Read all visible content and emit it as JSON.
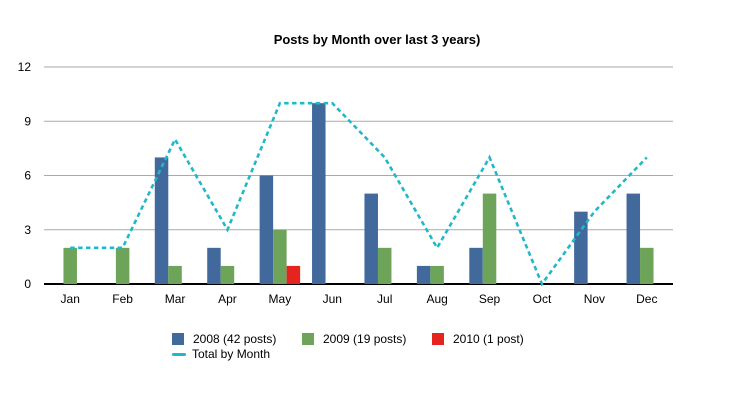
{
  "page": {
    "background": "#ffffff"
  },
  "chart_data": {
    "type": "bar",
    "title": "Posts by Month over last 3 years)",
    "categories": [
      "Jan",
      "Feb",
      "Mar",
      "Apr",
      "May",
      "Jun",
      "Jul",
      "Aug",
      "Sep",
      "Oct",
      "Nov",
      "Dec"
    ],
    "series": [
      {
        "name": "2008 (42 posts)",
        "kind": "bar",
        "color": "#41699c",
        "values": [
          0,
          0,
          7,
          2,
          6,
          10,
          5,
          1,
          2,
          0,
          4,
          5
        ]
      },
      {
        "name": "2009 (19 posts)",
        "kind": "bar",
        "color": "#6ea45a",
        "values": [
          2,
          2,
          1,
          1,
          3,
          0,
          2,
          1,
          5,
          0,
          0,
          2
        ]
      },
      {
        "name": "2010 (1 post)",
        "kind": "bar",
        "color": "#e52420",
        "values": [
          0,
          0,
          0,
          0,
          1,
          0,
          0,
          0,
          0,
          0,
          0,
          0
        ]
      },
      {
        "name": "Total by Month",
        "kind": "line",
        "dashed": true,
        "color": "#22b8c9",
        "values": [
          2,
          2,
          8,
          3,
          10,
          10,
          7,
          2,
          7,
          0,
          4,
          7
        ]
      }
    ],
    "xlabel": "",
    "ylabel": "",
    "ylim": [
      0,
      12
    ],
    "yticks": [
      0,
      3,
      6,
      9,
      12
    ],
    "grid": true,
    "legend_position": "bottom"
  },
  "colors": {
    "gridline": "#aaaaaa",
    "axis": "#000000",
    "text": "#000000"
  }
}
